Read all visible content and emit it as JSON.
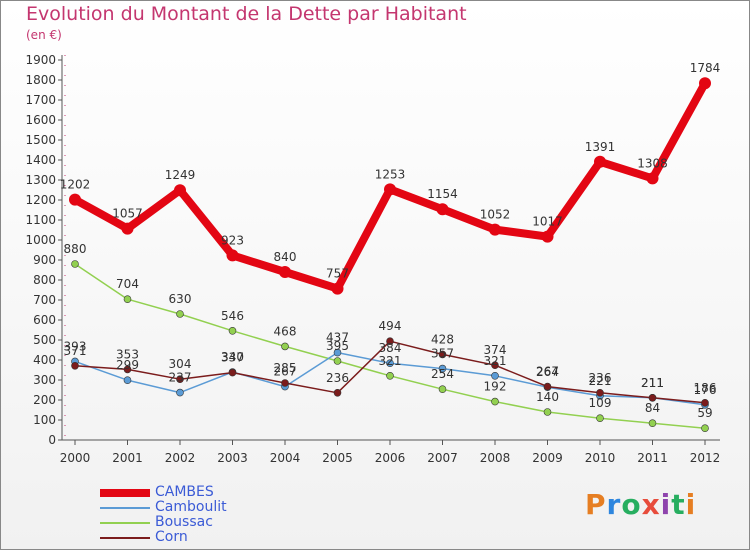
{
  "title": "Evolution du Montant de la Dette par Habitant",
  "subtitle": "(en €)",
  "logo": "Proxiti",
  "chart_data": {
    "type": "line",
    "x": [
      "2000",
      "2001",
      "2002",
      "2003",
      "2004",
      "2005",
      "2006",
      "2007",
      "2008",
      "2009",
      "2010",
      "2011",
      "2012"
    ],
    "ylim": [
      0,
      1900
    ],
    "yticks": [
      0,
      100,
      200,
      300,
      400,
      500,
      600,
      700,
      800,
      900,
      1000,
      1100,
      1200,
      1300,
      1400,
      1500,
      1600,
      1700,
      1800,
      1900
    ],
    "grid": false,
    "legend_position": "bottom-left",
    "series": [
      {
        "name": "CAMBES",
        "color": "#e30613",
        "values": [
          1202,
          1057,
          1249,
          923,
          840,
          757,
          1253,
          1154,
          1052,
          1017,
          1391,
          1308,
          1784
        ],
        "labels": [
          "1202",
          "1057",
          "1249",
          "923",
          "840",
          "757",
          "1253",
          "1154",
          "1052",
          "1017",
          "1391",
          "1308",
          "1784"
        ]
      },
      {
        "name": "Camboulit",
        "color": "#5b9bd5",
        "values": [
          393,
          299,
          237,
          340,
          267,
          437,
          384,
          357,
          321,
          264,
          221,
          211,
          176
        ],
        "labels": [
          "393",
          "299",
          "237",
          "340",
          "267",
          "437",
          "384",
          "357",
          "321",
          "264",
          "221",
          "211",
          "176"
        ]
      },
      {
        "name": "Boussac",
        "color": "#92d050",
        "values": [
          880,
          704,
          630,
          546,
          468,
          395,
          321,
          254,
          192,
          140,
          109,
          84,
          59
        ],
        "labels": [
          "880",
          "704",
          "630",
          "546",
          "468",
          "395",
          "321",
          "254",
          "192",
          "140",
          "109",
          "84",
          "59"
        ]
      },
      {
        "name": "Corn",
        "color": "#7b1c1c",
        "values": [
          371,
          353,
          304,
          337,
          285,
          236,
          494,
          428,
          374,
          267,
          236,
          211,
          186
        ],
        "labels": [
          "371",
          "353",
          "304",
          "337",
          "285",
          "236",
          "494",
          "428",
          "374",
          "267",
          "236",
          "211",
          "186"
        ]
      }
    ]
  }
}
